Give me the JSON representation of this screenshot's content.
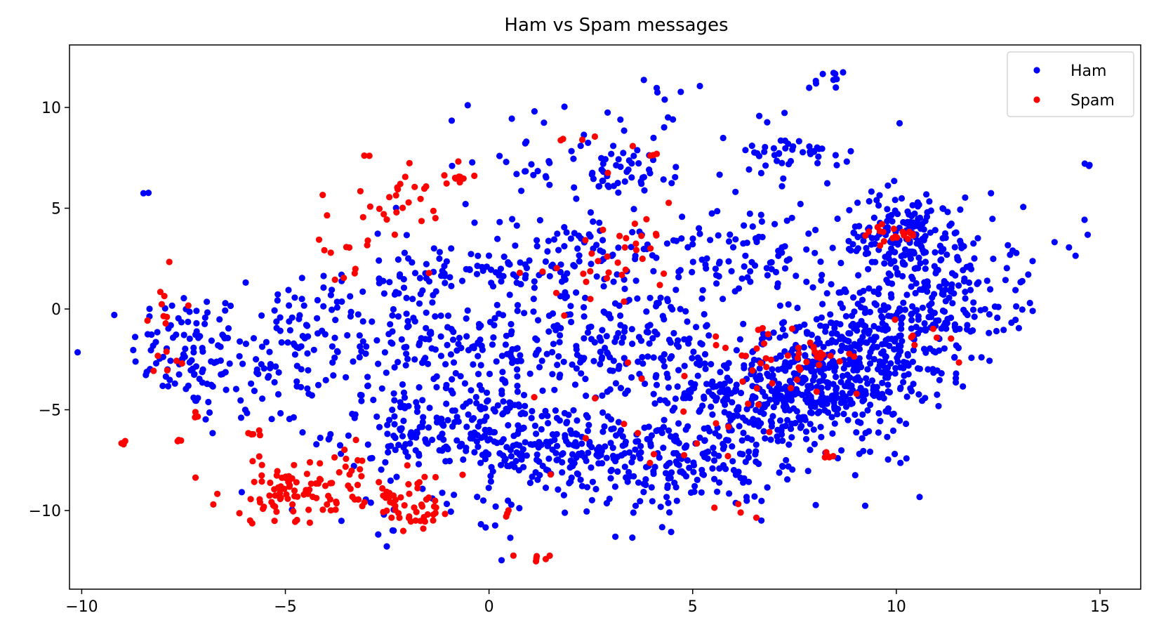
{
  "chart_data": {
    "type": "scatter",
    "title": "Ham vs Spam messages",
    "xlabel": "",
    "ylabel": "",
    "xlim": [
      -10.3,
      16.0
    ],
    "ylim": [
      -13.9,
      13.1
    ],
    "x_ticks": [
      -10,
      -5,
      0,
      5,
      10,
      15
    ],
    "y_ticks": [
      -10,
      -5,
      0,
      5,
      10
    ],
    "x_tick_labels": [
      "−10",
      "−5",
      "0",
      "5",
      "10",
      "15"
    ],
    "y_tick_labels": [
      "−10",
      "−5",
      "0",
      "5",
      "10"
    ],
    "grid": false,
    "legend_position": "top-right",
    "series": [
      {
        "name": "Ham",
        "color": "#0000ff",
        "clusters": [
          {
            "cx": -8.5,
            "cy": 5.8,
            "sx": 0.05,
            "sy": 0.05,
            "n": 2
          },
          {
            "cx": -7.4,
            "cy": -2.0,
            "sx": 0.7,
            "sy": 1.5,
            "n": 90
          },
          {
            "cx": -5.5,
            "cy": -3.0,
            "sx": 1.2,
            "sy": 1.8,
            "n": 80
          },
          {
            "cx": -4.0,
            "cy": 0.5,
            "sx": 0.8,
            "sy": 0.8,
            "n": 30
          },
          {
            "cx": -2.0,
            "cy": -1.5,
            "sx": 1.5,
            "sy": 1.2,
            "n": 110
          },
          {
            "cx": -1.2,
            "cy": -6.0,
            "sx": 1.3,
            "sy": 1.0,
            "n": 170
          },
          {
            "cx": 0.5,
            "cy": 1.8,
            "sx": 1.5,
            "sy": 0.4,
            "n": 70
          },
          {
            "cx": 0.8,
            "cy": -2.5,
            "sx": 1.5,
            "sy": 1.5,
            "n": 130
          },
          {
            "cx": 1.5,
            "cy": -6.8,
            "sx": 1.5,
            "sy": 1.1,
            "n": 160
          },
          {
            "cx": 2.5,
            "cy": 3.5,
            "sx": 1.2,
            "sy": 0.8,
            "n": 60
          },
          {
            "cx": 3.0,
            "cy": 6.8,
            "sx": 1.2,
            "sy": 0.6,
            "n": 60
          },
          {
            "cx": 3.5,
            "cy": -1.5,
            "sx": 1.4,
            "sy": 1.5,
            "n": 130
          },
          {
            "cx": 3.8,
            "cy": -7.5,
            "sx": 1.5,
            "sy": 1.0,
            "n": 120
          },
          {
            "cx": 6.5,
            "cy": -4.5,
            "sx": 1.2,
            "sy": 1.3,
            "n": 260
          },
          {
            "cx": 6.5,
            "cy": 2.5,
            "sx": 1.2,
            "sy": 1.5,
            "n": 100
          },
          {
            "cx": 7.5,
            "cy": 7.8,
            "sx": 0.7,
            "sy": 0.4,
            "n": 40
          },
          {
            "cx": 8.2,
            "cy": 11.2,
            "sx": 0.3,
            "sy": 0.3,
            "n": 10
          },
          {
            "cx": 8.5,
            "cy": -3.5,
            "sx": 1.0,
            "sy": 1.5,
            "n": 260
          },
          {
            "cx": 9.5,
            "cy": -1.5,
            "sx": 1.2,
            "sy": 1.4,
            "n": 220
          },
          {
            "cx": 10.3,
            "cy": 3.5,
            "sx": 0.8,
            "sy": 1.2,
            "n": 170
          },
          {
            "cx": 11.0,
            "cy": 0.5,
            "sx": 1.0,
            "sy": 1.8,
            "n": 130
          },
          {
            "cx": 6.0,
            "cy": -8.0,
            "sx": 1.8,
            "sy": 1.0,
            "n": 80
          },
          {
            "cx": 2.5,
            "cy": 9.0,
            "sx": 2.5,
            "sy": 1.2,
            "n": 35
          },
          {
            "cx": -1.5,
            "cy": 2.0,
            "sx": 1.5,
            "sy": 1.5,
            "n": 30
          },
          {
            "cx": 14.5,
            "cy": 2.5,
            "sx": 0.5,
            "sy": 2.0,
            "n": 5
          },
          {
            "cx": 14.7,
            "cy": 7.2,
            "sx": 0.05,
            "sy": 0.05,
            "n": 3
          },
          {
            "cx": 12.5,
            "cy": 2.0,
            "sx": 0.6,
            "sy": 1.5,
            "n": 12
          },
          {
            "cx": -1.0,
            "cy": -10.5,
            "sx": 2.5,
            "sy": 0.8,
            "n": 30
          }
        ]
      },
      {
        "name": "Spam",
        "color": "#ff0000",
        "clusters": [
          {
            "cx": -5.0,
            "cy": -9.0,
            "sx": 0.8,
            "sy": 0.8,
            "n": 70
          },
          {
            "cx": -3.5,
            "cy": -8.8,
            "sx": 0.8,
            "sy": 0.9,
            "n": 40
          },
          {
            "cx": -1.8,
            "cy": -9.8,
            "sx": 0.6,
            "sy": 0.7,
            "n": 45
          },
          {
            "cx": -7.9,
            "cy": -1.0,
            "sx": 0.3,
            "sy": 1.3,
            "n": 15
          },
          {
            "cx": -9.0,
            "cy": -6.6,
            "sx": 0.05,
            "sy": 0.05,
            "n": 3
          },
          {
            "cx": -2.0,
            "cy": 5.2,
            "sx": 0.6,
            "sy": 1.1,
            "n": 25
          },
          {
            "cx": -0.8,
            "cy": 6.5,
            "sx": 0.2,
            "sy": 0.1,
            "n": 8
          },
          {
            "cx": -3.5,
            "cy": 3.5,
            "sx": 0.5,
            "sy": 1.0,
            "n": 15
          },
          {
            "cx": 2.5,
            "cy": 1.8,
            "sx": 0.8,
            "sy": 0.8,
            "n": 20
          },
          {
            "cx": 3.5,
            "cy": 3.0,
            "sx": 0.5,
            "sy": 0.8,
            "n": 15
          },
          {
            "cx": 6.8,
            "cy": -2.5,
            "sx": 0.8,
            "sy": 0.8,
            "n": 25
          },
          {
            "cx": 8.2,
            "cy": -2.5,
            "sx": 0.5,
            "sy": 0.5,
            "n": 20
          },
          {
            "cx": 9.8,
            "cy": 3.7,
            "sx": 0.4,
            "sy": 0.3,
            "n": 20
          },
          {
            "cx": 1.2,
            "cy": -12.4,
            "sx": 0.2,
            "sy": 0.1,
            "n": 6
          },
          {
            "cx": 4.5,
            "cy": -5.5,
            "sx": 1.5,
            "sy": 1.5,
            "n": 20
          },
          {
            "cx": 6.0,
            "cy": -10.0,
            "sx": 0.5,
            "sy": 0.3,
            "n": 4
          },
          {
            "cx": 8.3,
            "cy": -7.3,
            "sx": 0.1,
            "sy": 0.1,
            "n": 5
          },
          {
            "cx": 0.5,
            "cy": -10.2,
            "sx": 0.2,
            "sy": 0.1,
            "n": 3
          },
          {
            "cx": -5.8,
            "cy": -6.2,
            "sx": 0.15,
            "sy": 0.1,
            "n": 5
          },
          {
            "cx": -7.6,
            "cy": -6.6,
            "sx": 0.05,
            "sy": 0.05,
            "n": 3
          },
          {
            "cx": -7.2,
            "cy": -5.3,
            "sx": 0.05,
            "sy": 0.1,
            "n": 3
          },
          {
            "cx": 3.0,
            "cy": 7.6,
            "sx": 0.5,
            "sy": 0.5,
            "n": 4
          },
          {
            "cx": -3.0,
            "cy": 7.6,
            "sx": 0.05,
            "sy": 0.05,
            "n": 2
          },
          {
            "cx": 4.0,
            "cy": 7.7,
            "sx": 0.1,
            "sy": 0.05,
            "n": 3
          },
          {
            "cx": 1.8,
            "cy": 8.4,
            "sx": 0.05,
            "sy": 0.05,
            "n": 2
          },
          {
            "cx": 11.0,
            "cy": -2.0,
            "sx": 0.6,
            "sy": 0.8,
            "n": 8
          }
        ]
      }
    ]
  }
}
